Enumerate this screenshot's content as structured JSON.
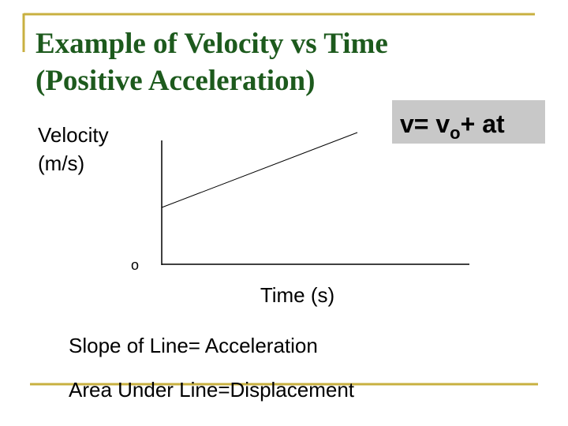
{
  "title": {
    "lines": [
      "Example of Velocity vs Time",
      "(Positive Acceleration)"
    ]
  },
  "equation": {
    "before": "v= v",
    "subscript": "o",
    "after": "+ at"
  },
  "graph": {
    "y_label": [
      "Velocity",
      "(m/s)"
    ],
    "origin": "o",
    "x_label": "Time (s)"
  },
  "notes": [
    "Slope of Line= Acceleration",
    "Area Under Line=Displacement"
  ]
}
